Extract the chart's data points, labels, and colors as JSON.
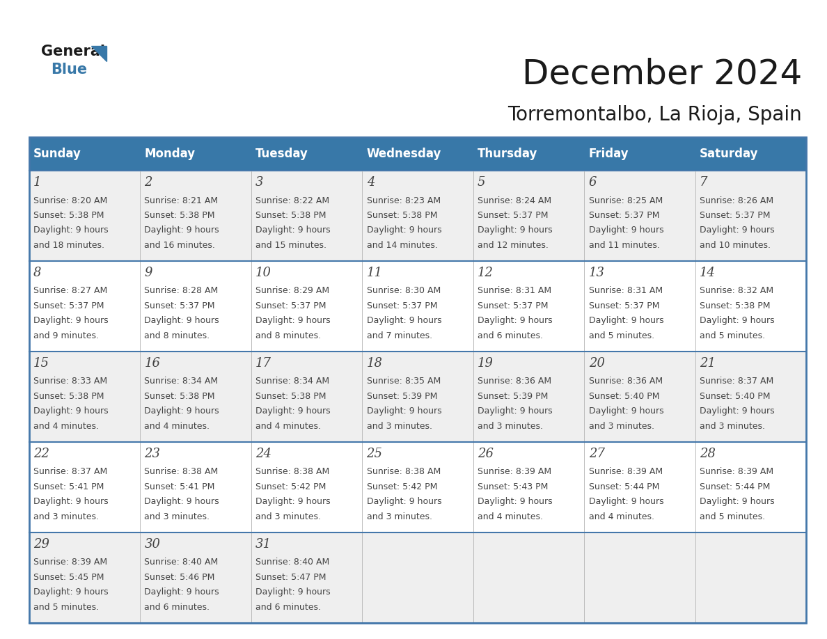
{
  "title": "December 2024",
  "subtitle": "Torremontalbo, La Rioja, Spain",
  "header_color": "#3878a8",
  "header_text_color": "#ffffff",
  "day_names": [
    "Sunday",
    "Monday",
    "Tuesday",
    "Wednesday",
    "Thursday",
    "Friday",
    "Saturday"
  ],
  "bg_color": "#ffffff",
  "cell_bg_even": "#efefef",
  "cell_bg_odd": "#ffffff",
  "border_color": "#4477aa",
  "divider_color": "#4477aa",
  "text_color": "#444444",
  "calendar": [
    [
      {
        "day": 1,
        "sunrise": "8:20 AM",
        "sunset": "5:38 PM",
        "daylight": "9 hours and 18 minutes."
      },
      {
        "day": 2,
        "sunrise": "8:21 AM",
        "sunset": "5:38 PM",
        "daylight": "9 hours and 16 minutes."
      },
      {
        "day": 3,
        "sunrise": "8:22 AM",
        "sunset": "5:38 PM",
        "daylight": "9 hours and 15 minutes."
      },
      {
        "day": 4,
        "sunrise": "8:23 AM",
        "sunset": "5:38 PM",
        "daylight": "9 hours and 14 minutes."
      },
      {
        "day": 5,
        "sunrise": "8:24 AM",
        "sunset": "5:37 PM",
        "daylight": "9 hours and 12 minutes."
      },
      {
        "day": 6,
        "sunrise": "8:25 AM",
        "sunset": "5:37 PM",
        "daylight": "9 hours and 11 minutes."
      },
      {
        "day": 7,
        "sunrise": "8:26 AM",
        "sunset": "5:37 PM",
        "daylight": "9 hours and 10 minutes."
      }
    ],
    [
      {
        "day": 8,
        "sunrise": "8:27 AM",
        "sunset": "5:37 PM",
        "daylight": "9 hours and 9 minutes."
      },
      {
        "day": 9,
        "sunrise": "8:28 AM",
        "sunset": "5:37 PM",
        "daylight": "9 hours and 8 minutes."
      },
      {
        "day": 10,
        "sunrise": "8:29 AM",
        "sunset": "5:37 PM",
        "daylight": "9 hours and 8 minutes."
      },
      {
        "day": 11,
        "sunrise": "8:30 AM",
        "sunset": "5:37 PM",
        "daylight": "9 hours and 7 minutes."
      },
      {
        "day": 12,
        "sunrise": "8:31 AM",
        "sunset": "5:37 PM",
        "daylight": "9 hours and 6 minutes."
      },
      {
        "day": 13,
        "sunrise": "8:31 AM",
        "sunset": "5:37 PM",
        "daylight": "9 hours and 5 minutes."
      },
      {
        "day": 14,
        "sunrise": "8:32 AM",
        "sunset": "5:38 PM",
        "daylight": "9 hours and 5 minutes."
      }
    ],
    [
      {
        "day": 15,
        "sunrise": "8:33 AM",
        "sunset": "5:38 PM",
        "daylight": "9 hours and 4 minutes."
      },
      {
        "day": 16,
        "sunrise": "8:34 AM",
        "sunset": "5:38 PM",
        "daylight": "9 hours and 4 minutes."
      },
      {
        "day": 17,
        "sunrise": "8:34 AM",
        "sunset": "5:38 PM",
        "daylight": "9 hours and 4 minutes."
      },
      {
        "day": 18,
        "sunrise": "8:35 AM",
        "sunset": "5:39 PM",
        "daylight": "9 hours and 3 minutes."
      },
      {
        "day": 19,
        "sunrise": "8:36 AM",
        "sunset": "5:39 PM",
        "daylight": "9 hours and 3 minutes."
      },
      {
        "day": 20,
        "sunrise": "8:36 AM",
        "sunset": "5:40 PM",
        "daylight": "9 hours and 3 minutes."
      },
      {
        "day": 21,
        "sunrise": "8:37 AM",
        "sunset": "5:40 PM",
        "daylight": "9 hours and 3 minutes."
      }
    ],
    [
      {
        "day": 22,
        "sunrise": "8:37 AM",
        "sunset": "5:41 PM",
        "daylight": "9 hours and 3 minutes."
      },
      {
        "day": 23,
        "sunrise": "8:38 AM",
        "sunset": "5:41 PM",
        "daylight": "9 hours and 3 minutes."
      },
      {
        "day": 24,
        "sunrise": "8:38 AM",
        "sunset": "5:42 PM",
        "daylight": "9 hours and 3 minutes."
      },
      {
        "day": 25,
        "sunrise": "8:38 AM",
        "sunset": "5:42 PM",
        "daylight": "9 hours and 3 minutes."
      },
      {
        "day": 26,
        "sunrise": "8:39 AM",
        "sunset": "5:43 PM",
        "daylight": "9 hours and 4 minutes."
      },
      {
        "day": 27,
        "sunrise": "8:39 AM",
        "sunset": "5:44 PM",
        "daylight": "9 hours and 4 minutes."
      },
      {
        "day": 28,
        "sunrise": "8:39 AM",
        "sunset": "5:44 PM",
        "daylight": "9 hours and 5 minutes."
      }
    ],
    [
      {
        "day": 29,
        "sunrise": "8:39 AM",
        "sunset": "5:45 PM",
        "daylight": "9 hours and 5 minutes."
      },
      {
        "day": 30,
        "sunrise": "8:40 AM",
        "sunset": "5:46 PM",
        "daylight": "9 hours and 6 minutes."
      },
      {
        "day": 31,
        "sunrise": "8:40 AM",
        "sunset": "5:47 PM",
        "daylight": "9 hours and 6 minutes."
      },
      null,
      null,
      null,
      null
    ]
  ],
  "logo_general_color": "#1a1a1a",
  "logo_blue_color": "#3878a8",
  "title_fontsize": 36,
  "subtitle_fontsize": 20,
  "header_fontsize": 12,
  "day_num_fontsize": 13,
  "cell_text_fontsize": 9
}
